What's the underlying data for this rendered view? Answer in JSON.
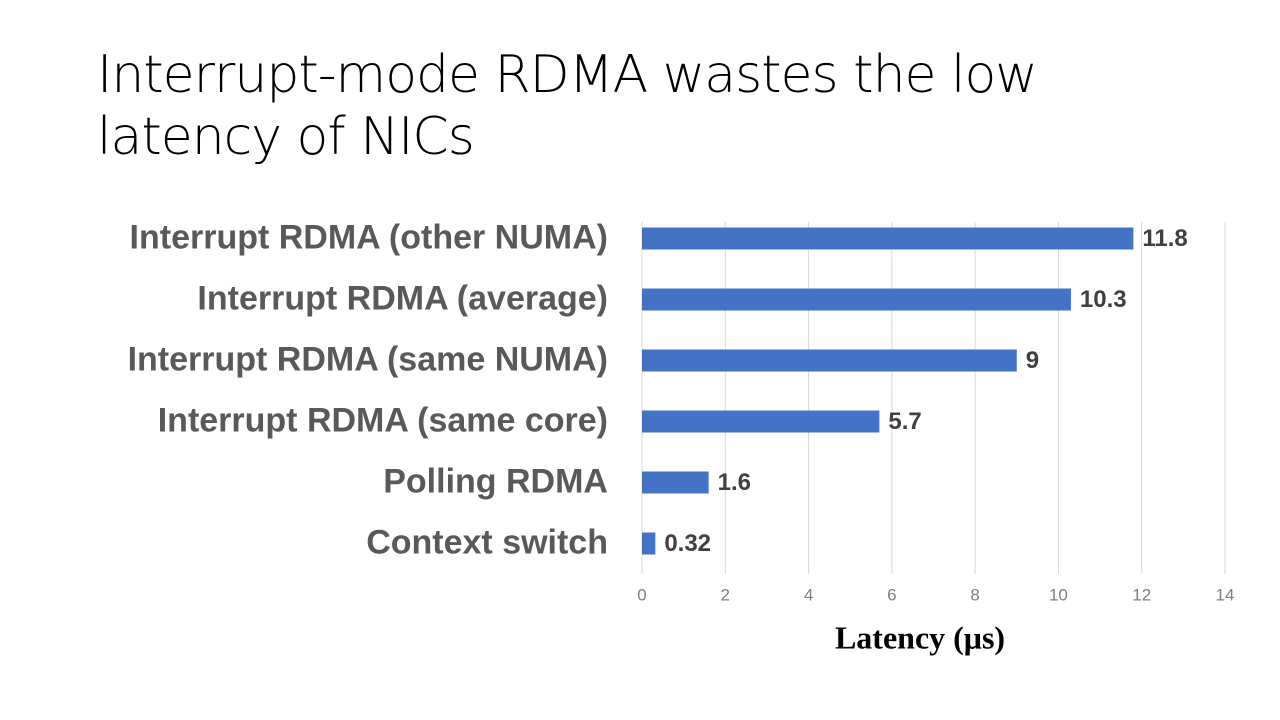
{
  "chart_data": {
    "type": "bar",
    "orientation": "horizontal",
    "title": "Interrupt-mode RDMA wastes the low latency of NICs",
    "categories": [
      "Interrupt RDMA (other NUMA)",
      "Interrupt RDMA (average)",
      "Interrupt RDMA (same NUMA)",
      "Interrupt RDMA (same core)",
      "Polling RDMA",
      "Context switch"
    ],
    "values": [
      11.8,
      10.3,
      9,
      5.7,
      1.6,
      0.32
    ],
    "color": "#4472c4",
    "x_label": "Latency (μs)",
    "xlim": [
      0,
      14
    ],
    "xticks": [
      0,
      2,
      4,
      6,
      8,
      10,
      12,
      14
    ],
    "grid": true
  }
}
